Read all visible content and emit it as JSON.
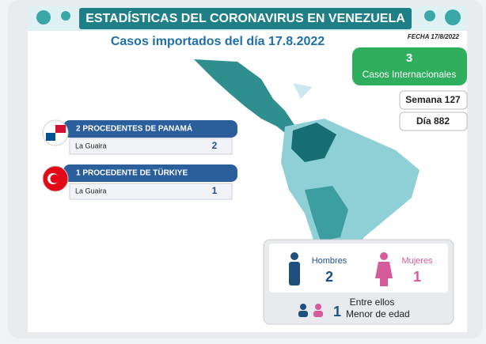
{
  "header": {
    "title": "ESTADÍSTICAS DEL CORONAVIRUS EN VENEZUELA",
    "subtitle": "Casos importados del día 17.8.2022",
    "date": "FECHA 17/8/2022"
  },
  "summary": {
    "count": 3,
    "label": "Casos Internacionales",
    "week": "Semana 127",
    "day": "Día 882"
  },
  "origins": [
    {
      "heading": "2 PROCEDENTES DE PANAMÁ",
      "rows": [
        {
          "state": "La Guaira",
          "count": 2
        }
      ]
    },
    {
      "heading": "1 PROCEDENTE DE TÜRKIYE",
      "rows": [
        {
          "state": "La Guaira",
          "count": 1
        }
      ]
    }
  ],
  "gender": {
    "men_label": "Hombres",
    "men": 2,
    "women_label": "Mujeres",
    "women": 1,
    "minors_intro": "Entre ellos",
    "minors": 1,
    "minors_label": "Menor de edad"
  }
}
